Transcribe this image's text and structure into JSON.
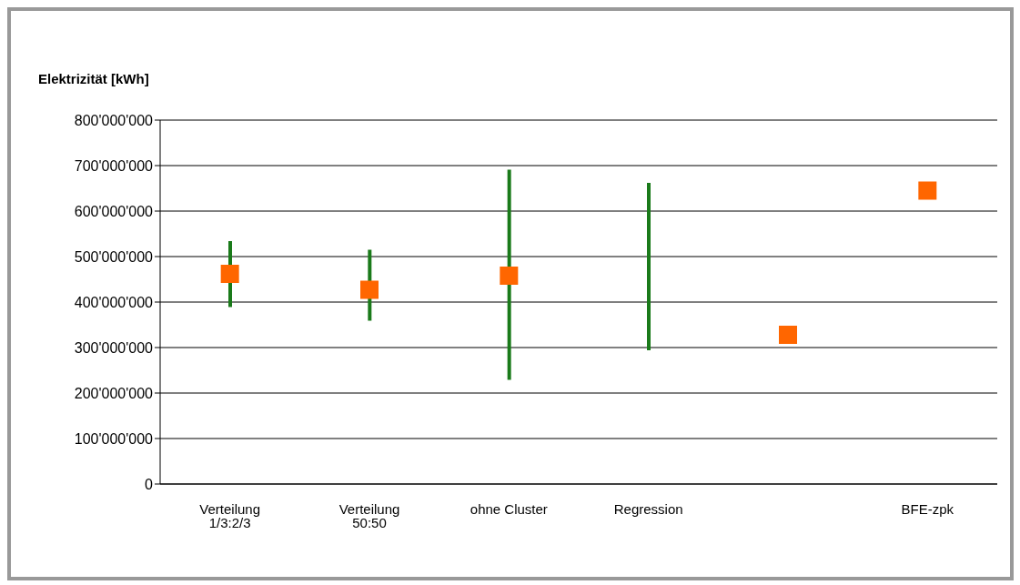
{
  "chart_data": {
    "type": "bar",
    "ylabel": "Elektrizität [kWh]",
    "categories": [
      "Verteilung 1/3:2/3",
      "Verteilung 50:50",
      "ohne Cluster",
      "Regression",
      null,
      "BFE-zpk"
    ],
    "series": [
      {
        "color": "#1a7a1a",
        "base": [
          389000000,
          359000000,
          229000000,
          294000000,
          null,
          null
        ],
        "values": [
          145000000,
          156000000,
          462000000,
          368000000,
          null,
          null
        ]
      },
      {
        "type": "scatter",
        "color": "#ff6600",
        "marker": "square",
        "values": [
          462000000,
          427000000,
          458000000,
          null,
          328000000,
          645000000
        ]
      }
    ],
    "ylim": [
      0,
      800000000
    ],
    "yticks": [
      {
        "value": 0,
        "label": "0"
      },
      {
        "value": 100000000,
        "label": "100'000'000"
      },
      {
        "value": 200000000,
        "label": "200'000'000"
      },
      {
        "value": 300000000,
        "label": "300'000'000"
      },
      {
        "value": 400000000,
        "label": "400'000'000"
      },
      {
        "value": 500000000,
        "label": "500'000'000"
      },
      {
        "value": 600000000,
        "label": "600'000'000"
      },
      {
        "value": 700000000,
        "label": "700'000'000"
      },
      {
        "value": 800000000,
        "label": "800'000'000"
      }
    ],
    "grid": "y"
  }
}
